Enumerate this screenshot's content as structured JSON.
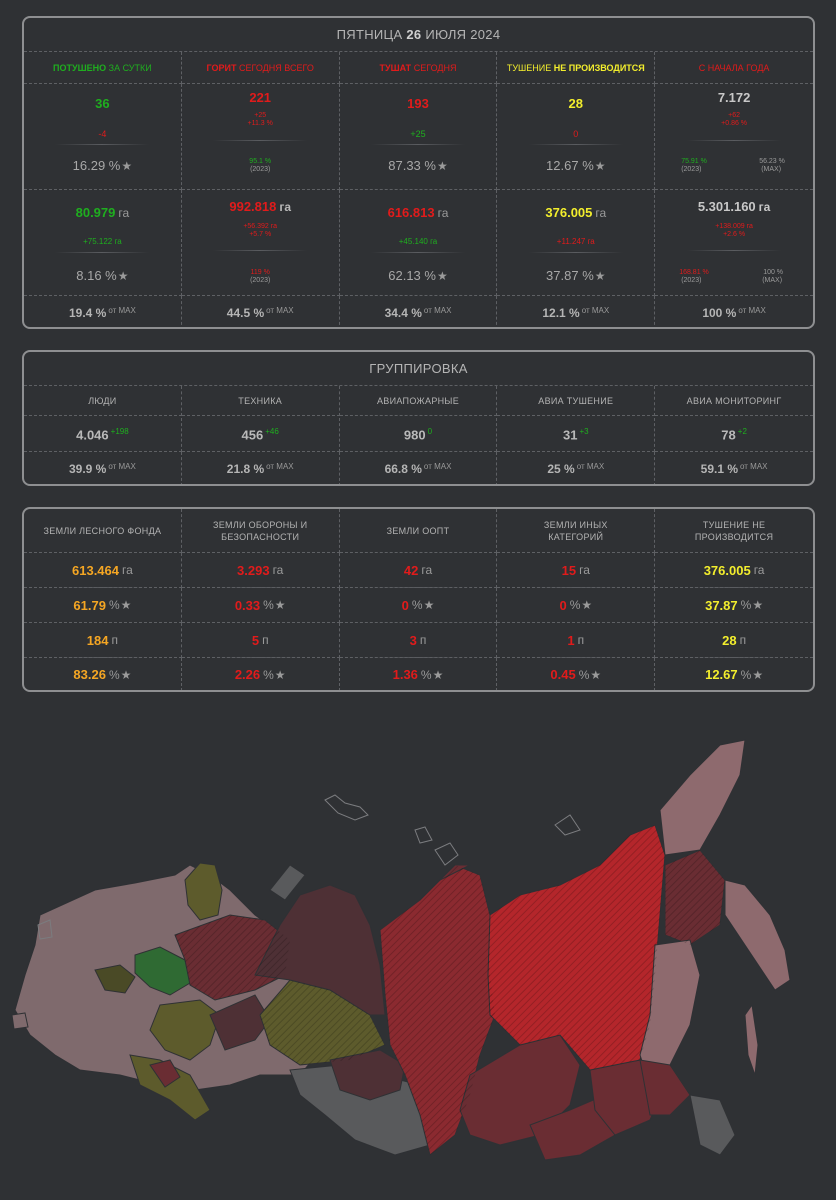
{
  "main": {
    "date_prefix": "ПЯТНИЦА",
    "date_day": "26",
    "date_suffix": "ИЮЛЯ 2024",
    "headers": [
      {
        "a": "ПОТУШЕНО",
        "b": "ЗА СУТКИ"
      },
      {
        "a": "ГОРИТ",
        "b": "СЕГОДНЯ ВСЕГО"
      },
      {
        "a": "ТУШАТ",
        "b": "СЕГОДНЯ"
      },
      {
        "a": "ТУШЕНИЕ",
        "b": "НЕ ПРОИЗВОДИТСЯ"
      },
      {
        "a": "С НАЧАЛА ГОДА",
        "b": ""
      }
    ],
    "count": {
      "extinguished": {
        "value": "36",
        "delta": "-4",
        "pct": "16.29 %"
      },
      "burning": {
        "value": "221",
        "delta1": "+25",
        "delta2": "+11.3 %",
        "cmp": "95.1 %",
        "cmp_year": "(2023)"
      },
      "fighting": {
        "value": "193",
        "delta": "+25",
        "pct": "87.33 %"
      },
      "not_fought": {
        "value": "28",
        "delta": "0",
        "pct": "12.67 %"
      },
      "year": {
        "value": "7.172",
        "delta1": "+62",
        "delta2": "+0.86 %",
        "cmp1": "75.91 %",
        "cmp1_year": "(2023)",
        "cmp2": "56.23 %",
        "cmp2_year": "(MAX)"
      }
    },
    "area": {
      "extinguished": {
        "value": "80.979",
        "unit": "га",
        "delta": "+75.122 га",
        "pct": "8.16 %"
      },
      "burning": {
        "value": "992.818",
        "unit": "га",
        "delta1": "+56.392 га",
        "delta2": "+5.7 %",
        "cmp": "119 %",
        "cmp_year": "(2023)"
      },
      "fighting": {
        "value": "616.813",
        "unit": "га",
        "delta": "+45.140 га",
        "pct": "62.13 %"
      },
      "not_fought": {
        "value": "376.005",
        "unit": "га",
        "delta": "+11.247 га",
        "pct": "37.87 %"
      },
      "year": {
        "value": "5.301.160",
        "unit": "га",
        "delta1": "+138.009 га",
        "delta2": "+2.6 %",
        "cmp1": "168.81 %",
        "cmp1_year": "(2023)",
        "cmp2": "100 %",
        "cmp2_year": "(MAX)"
      }
    },
    "of_max": [
      {
        "value": "19.4 %",
        "label": "от MAX"
      },
      {
        "value": "44.5 %",
        "label": "от MAX"
      },
      {
        "value": "34.4 %",
        "label": "от MAX"
      },
      {
        "value": "12.1 %",
        "label": "от MAX"
      },
      {
        "value": "100 %",
        "label": "от MAX"
      }
    ]
  },
  "group": {
    "title": "ГРУППИРОВКА",
    "items": [
      {
        "label": "ЛЮДИ",
        "value": "4.046",
        "delta": "+198",
        "pct": "39.9 %",
        "of": "от MAX"
      },
      {
        "label": "ТЕХНИКА",
        "value": "456",
        "delta": "+46",
        "pct": "21.8 %",
        "of": "от MAX"
      },
      {
        "label": "АВИАПОЖАРНЫЕ",
        "value": "980",
        "delta": "0",
        "pct": "66.8 %",
        "of": "от MAX"
      },
      {
        "label": "АВИА ТУШЕНИЕ",
        "value": "31",
        "delta": "+3",
        "pct": "25 %",
        "of": "от MAX"
      },
      {
        "label": "АВИА МОНИТОРИНГ",
        "value": "78",
        "delta": "+2",
        "pct": "59.1 %",
        "of": "от MAX"
      }
    ]
  },
  "lands": {
    "items": [
      {
        "label": "ЗЕМЛИ ЛЕСНОГО ФОНДА",
        "area": "613.464",
        "area_unit": "га",
        "area_pct": "61.79",
        "count": "184",
        "count_unit": "п",
        "count_pct": "83.26",
        "pct_sign": "%",
        "color": "#f5a623"
      },
      {
        "label": "ЗЕМЛИ ОБОРОНЫ И БЕЗОПАСНОСТИ",
        "area": "3.293",
        "area_unit": "га",
        "area_pct": "0.33",
        "count": "5",
        "count_unit": "п",
        "count_pct": "2.26",
        "pct_sign": "%",
        "color": "#e11b1b"
      },
      {
        "label": "ЗЕМЛИ ООПТ",
        "area": "42",
        "area_unit": "га",
        "area_pct": "0",
        "count": "3",
        "count_unit": "п",
        "count_pct": "1.36",
        "pct_sign": "%",
        "color": "#e11b1b"
      },
      {
        "label": "ЗЕМЛИ ИНЫХ КАТЕГОРИЙ",
        "area": "15",
        "area_unit": "га",
        "area_pct": "0",
        "count": "1",
        "count_unit": "п",
        "count_pct": "0.45",
        "pct_sign": "%",
        "color": "#e11b1b"
      },
      {
        "label": "ТУШЕНИЕ НЕ ПРОИЗВОДИТСЯ",
        "area": "376.005",
        "area_unit": "га",
        "area_pct": "37.87",
        "count": "28",
        "count_unit": "п",
        "count_pct": "12.67",
        "pct_sign": "%",
        "color": "#f3ee2d"
      }
    ]
  },
  "colors": {
    "green": "#1fae1f",
    "red": "#e11b1b",
    "yellow": "#f3ee2d",
    "orange": "#f5a623",
    "map_bright_red": "#b4262b",
    "map_dark_red": "#6a2d33",
    "map_pink": "#8e6a6e",
    "map_olive": "#5b5a2a",
    "map_green": "#2f6a33",
    "map_grey": "#595a5c"
  },
  "icons": {
    "star": "star-icon"
  }
}
